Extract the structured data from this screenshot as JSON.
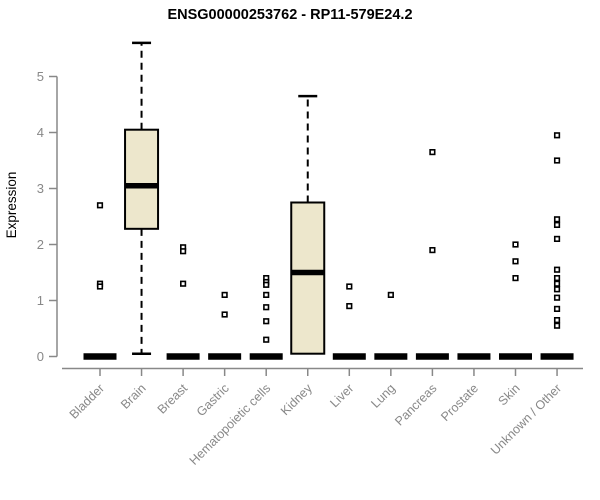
{
  "chart_data": {
    "type": "boxplot",
    "title": "ENSG00000253762 - RP11-579E24.2",
    "xlabel": "",
    "ylabel": "Expression",
    "ylim": [
      0,
      5.65
    ],
    "yticks": [
      0,
      1,
      2,
      3,
      4,
      5
    ],
    "grid": false,
    "legend": "none",
    "categories": [
      "Bladder",
      "Brain",
      "Breast",
      "Gastric",
      "Hematopoietic cells",
      "Kidney",
      "Liver",
      "Lung",
      "Pancreas",
      "Prostate",
      "Skin",
      "Unknown / Other"
    ],
    "boxes": [
      {
        "category": "Bladder",
        "whisker_low": 0,
        "q1": 0,
        "median": 0,
        "q3": 0,
        "whisker_high": 0,
        "outliers": [
          2.7,
          1.3,
          1.25
        ]
      },
      {
        "category": "Brain",
        "whisker_low": 0.05,
        "q1": 2.28,
        "median": 3.05,
        "q3": 4.05,
        "whisker_high": 5.6,
        "outliers": []
      },
      {
        "category": "Breast",
        "whisker_low": 0,
        "q1": 0,
        "median": 0,
        "q3": 0,
        "whisker_high": 0,
        "outliers": [
          1.95,
          1.88,
          1.3
        ]
      },
      {
        "category": "Gastric",
        "whisker_low": 0,
        "q1": 0,
        "median": 0,
        "q3": 0,
        "whisker_high": 0,
        "outliers": [
          1.1,
          0.75
        ]
      },
      {
        "category": "Hematopoietic cells",
        "whisker_low": 0,
        "q1": 0,
        "median": 0,
        "q3": 0,
        "whisker_high": 0,
        "outliers": [
          1.4,
          1.33,
          1.28,
          1.1,
          0.88,
          0.63,
          0.3
        ]
      },
      {
        "category": "Kidney",
        "whisker_low": 0.05,
        "q1": 0.05,
        "median": 1.5,
        "q3": 2.75,
        "whisker_high": 4.65,
        "outliers": []
      },
      {
        "category": "Liver",
        "whisker_low": 0,
        "q1": 0,
        "median": 0,
        "q3": 0,
        "whisker_high": 0,
        "outliers": [
          1.25,
          0.9
        ]
      },
      {
        "category": "Lung",
        "whisker_low": 0,
        "q1": 0,
        "median": 0,
        "q3": 0,
        "whisker_high": 0,
        "outliers": [
          1.1
        ]
      },
      {
        "category": "Pancreas",
        "whisker_low": 0,
        "q1": 0,
        "median": 0,
        "q3": 0,
        "whisker_high": 0,
        "outliers": [
          3.65,
          1.9
        ]
      },
      {
        "category": "Prostate",
        "whisker_low": 0,
        "q1": 0,
        "median": 0,
        "q3": 0,
        "whisker_high": 0,
        "outliers": []
      },
      {
        "category": "Skin",
        "whisker_low": 0,
        "q1": 0,
        "median": 0,
        "q3": 0,
        "whisker_high": 0,
        "outliers": [
          2.0,
          1.7,
          1.4
        ]
      },
      {
        "category": "Unknown / Other",
        "whisker_low": 0,
        "q1": 0,
        "median": 0,
        "q3": 0,
        "whisker_high": 0,
        "outliers": [
          3.95,
          3.5,
          2.45,
          2.35,
          2.1,
          1.55,
          1.4,
          1.3,
          1.2,
          1.05,
          0.85,
          0.65,
          0.55
        ]
      }
    ],
    "colors": {
      "box_fill": "#EDE7CC",
      "box_stroke": "#000000",
      "median": "#000000",
      "whisker": "#000000",
      "outlier_stroke": "#000000",
      "outlier_fill": "#FFFFFF",
      "axis": "#888888",
      "tick_label": "#888888",
      "title": "#000000",
      "background": "#FFFFFF"
    }
  }
}
